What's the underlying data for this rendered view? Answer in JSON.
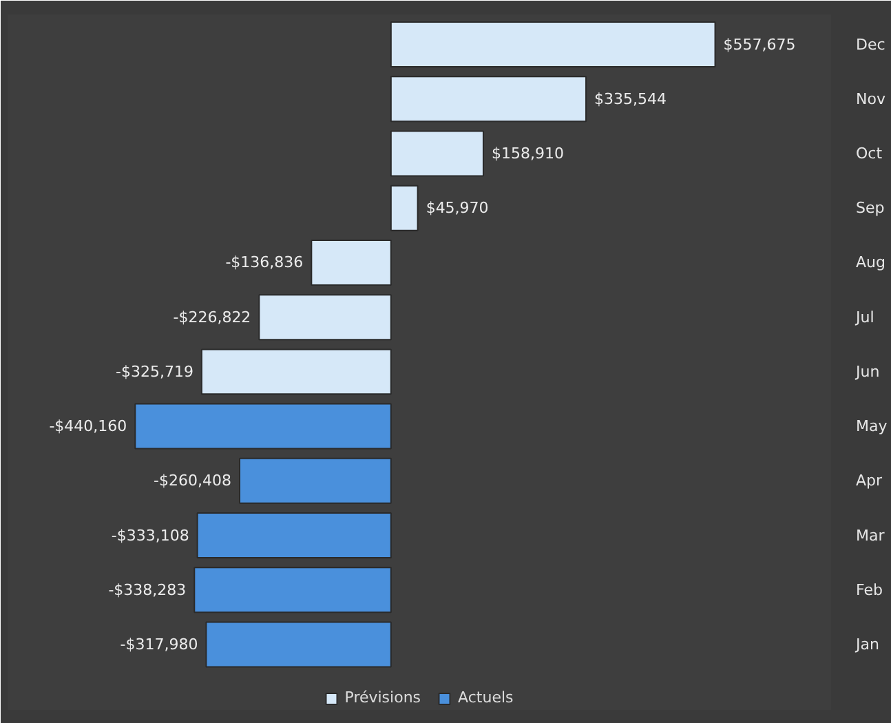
{
  "chart_data": {
    "type": "bar",
    "orientation": "horizontal",
    "categories": [
      "Dec",
      "Nov",
      "Oct",
      "Sep",
      "Aug",
      "Jul",
      "Jun",
      "May",
      "Apr",
      "Mar",
      "Feb",
      "Jan"
    ],
    "series": [
      {
        "name": "Prévisions",
        "color": "#d6e8f8",
        "values": [
          557675,
          335544,
          158910,
          45970,
          -136836,
          -226822,
          -325719,
          null,
          null,
          null,
          null,
          null
        ],
        "value_labels": [
          "$557,675",
          "$335,544",
          "$158,910",
          "$45,970",
          "-$136,836",
          "-$226,822",
          "-$325,719",
          null,
          null,
          null,
          null,
          null
        ]
      },
      {
        "name": "Actuels",
        "color": "#4a90dc",
        "values": [
          null,
          null,
          null,
          null,
          null,
          null,
          null,
          -440160,
          -260408,
          -333108,
          -338283,
          -317980
        ],
        "value_labels": [
          null,
          null,
          null,
          null,
          null,
          null,
          null,
          "-$440,160",
          "-$260,408",
          "-$333,108",
          "-$338,283",
          "-$317,980"
        ]
      }
    ],
    "legend": "bottom",
    "grid": false
  }
}
